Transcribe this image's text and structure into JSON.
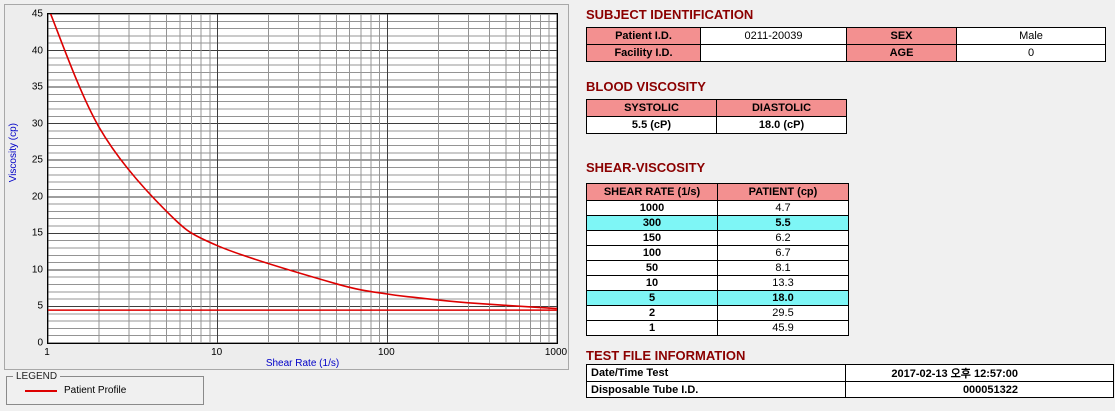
{
  "colors": {
    "page_bg": "#f0f0f0",
    "heading": "#8b0000",
    "header_cell_bg": "#f39090",
    "highlight_bg": "#7ef6f6",
    "curve": "#dd0000",
    "axis_title": "#0000c8"
  },
  "chart_data": {
    "type": "line",
    "xlabel": "Shear Rate (1/s)",
    "ylabel": "Viscosity (cp)",
    "x_scale": "log",
    "xlim": [
      1,
      1000
    ],
    "ylim": [
      0,
      45
    ],
    "xticks": [
      1,
      10,
      100,
      1000
    ],
    "yticks": [
      0,
      5,
      10,
      15,
      20,
      25,
      30,
      35,
      40,
      45
    ],
    "y_minor_step": 1,
    "y_major_step": 5,
    "grid": true,
    "legend_position": "bottom-left",
    "series": [
      {
        "name": "Patient Profile",
        "color": "#dd0000",
        "x": [
          1,
          2,
          5,
          10,
          50,
          100,
          150,
          300,
          1000
        ],
        "y": [
          45.9,
          29.5,
          18.0,
          13.3,
          8.1,
          6.7,
          6.2,
          5.5,
          4.7
        ]
      }
    ],
    "reference_line_y": 4.5
  },
  "legend": {
    "title": "LEGEND",
    "items": [
      {
        "label": "Patient Profile",
        "color": "#dd0000"
      }
    ]
  },
  "subject": {
    "heading": "SUBJECT IDENTIFICATION",
    "rows": [
      {
        "label1": "Patient I.D.",
        "value1": "0211-20039",
        "label2": "SEX",
        "value2": "Male"
      },
      {
        "label1": "Facility I.D.",
        "value1": "",
        "label2": "AGE",
        "value2": "0"
      }
    ]
  },
  "blood_viscosity": {
    "heading": "BLOOD VISCOSITY",
    "columns": [
      "SYSTOLIC",
      "DIASTOLIC"
    ],
    "values": [
      "5.5 (cP)",
      "18.0 (cP)"
    ]
  },
  "shear_viscosity": {
    "heading": "SHEAR-VISCOSITY",
    "columns": [
      "SHEAR RATE (1/s)",
      "PATIENT (cp)"
    ],
    "rows": [
      {
        "rate": "1000",
        "value": "4.7",
        "highlight": false
      },
      {
        "rate": "300",
        "value": "5.5",
        "highlight": true
      },
      {
        "rate": "150",
        "value": "6.2",
        "highlight": false
      },
      {
        "rate": "100",
        "value": "6.7",
        "highlight": false
      },
      {
        "rate": "50",
        "value": "8.1",
        "highlight": false
      },
      {
        "rate": "10",
        "value": "13.3",
        "highlight": false
      },
      {
        "rate": "5",
        "value": "18.0",
        "highlight": true
      },
      {
        "rate": "2",
        "value": "29.5",
        "highlight": false
      },
      {
        "rate": "1",
        "value": "45.9",
        "highlight": false
      }
    ]
  },
  "test_file": {
    "heading": "TEST FILE INFORMATION",
    "rows": [
      {
        "label": "Date/Time Test",
        "value": "2017-02-13  오후 12:57:00"
      },
      {
        "label": "Disposable Tube I.D.",
        "value": "000051322"
      }
    ]
  }
}
